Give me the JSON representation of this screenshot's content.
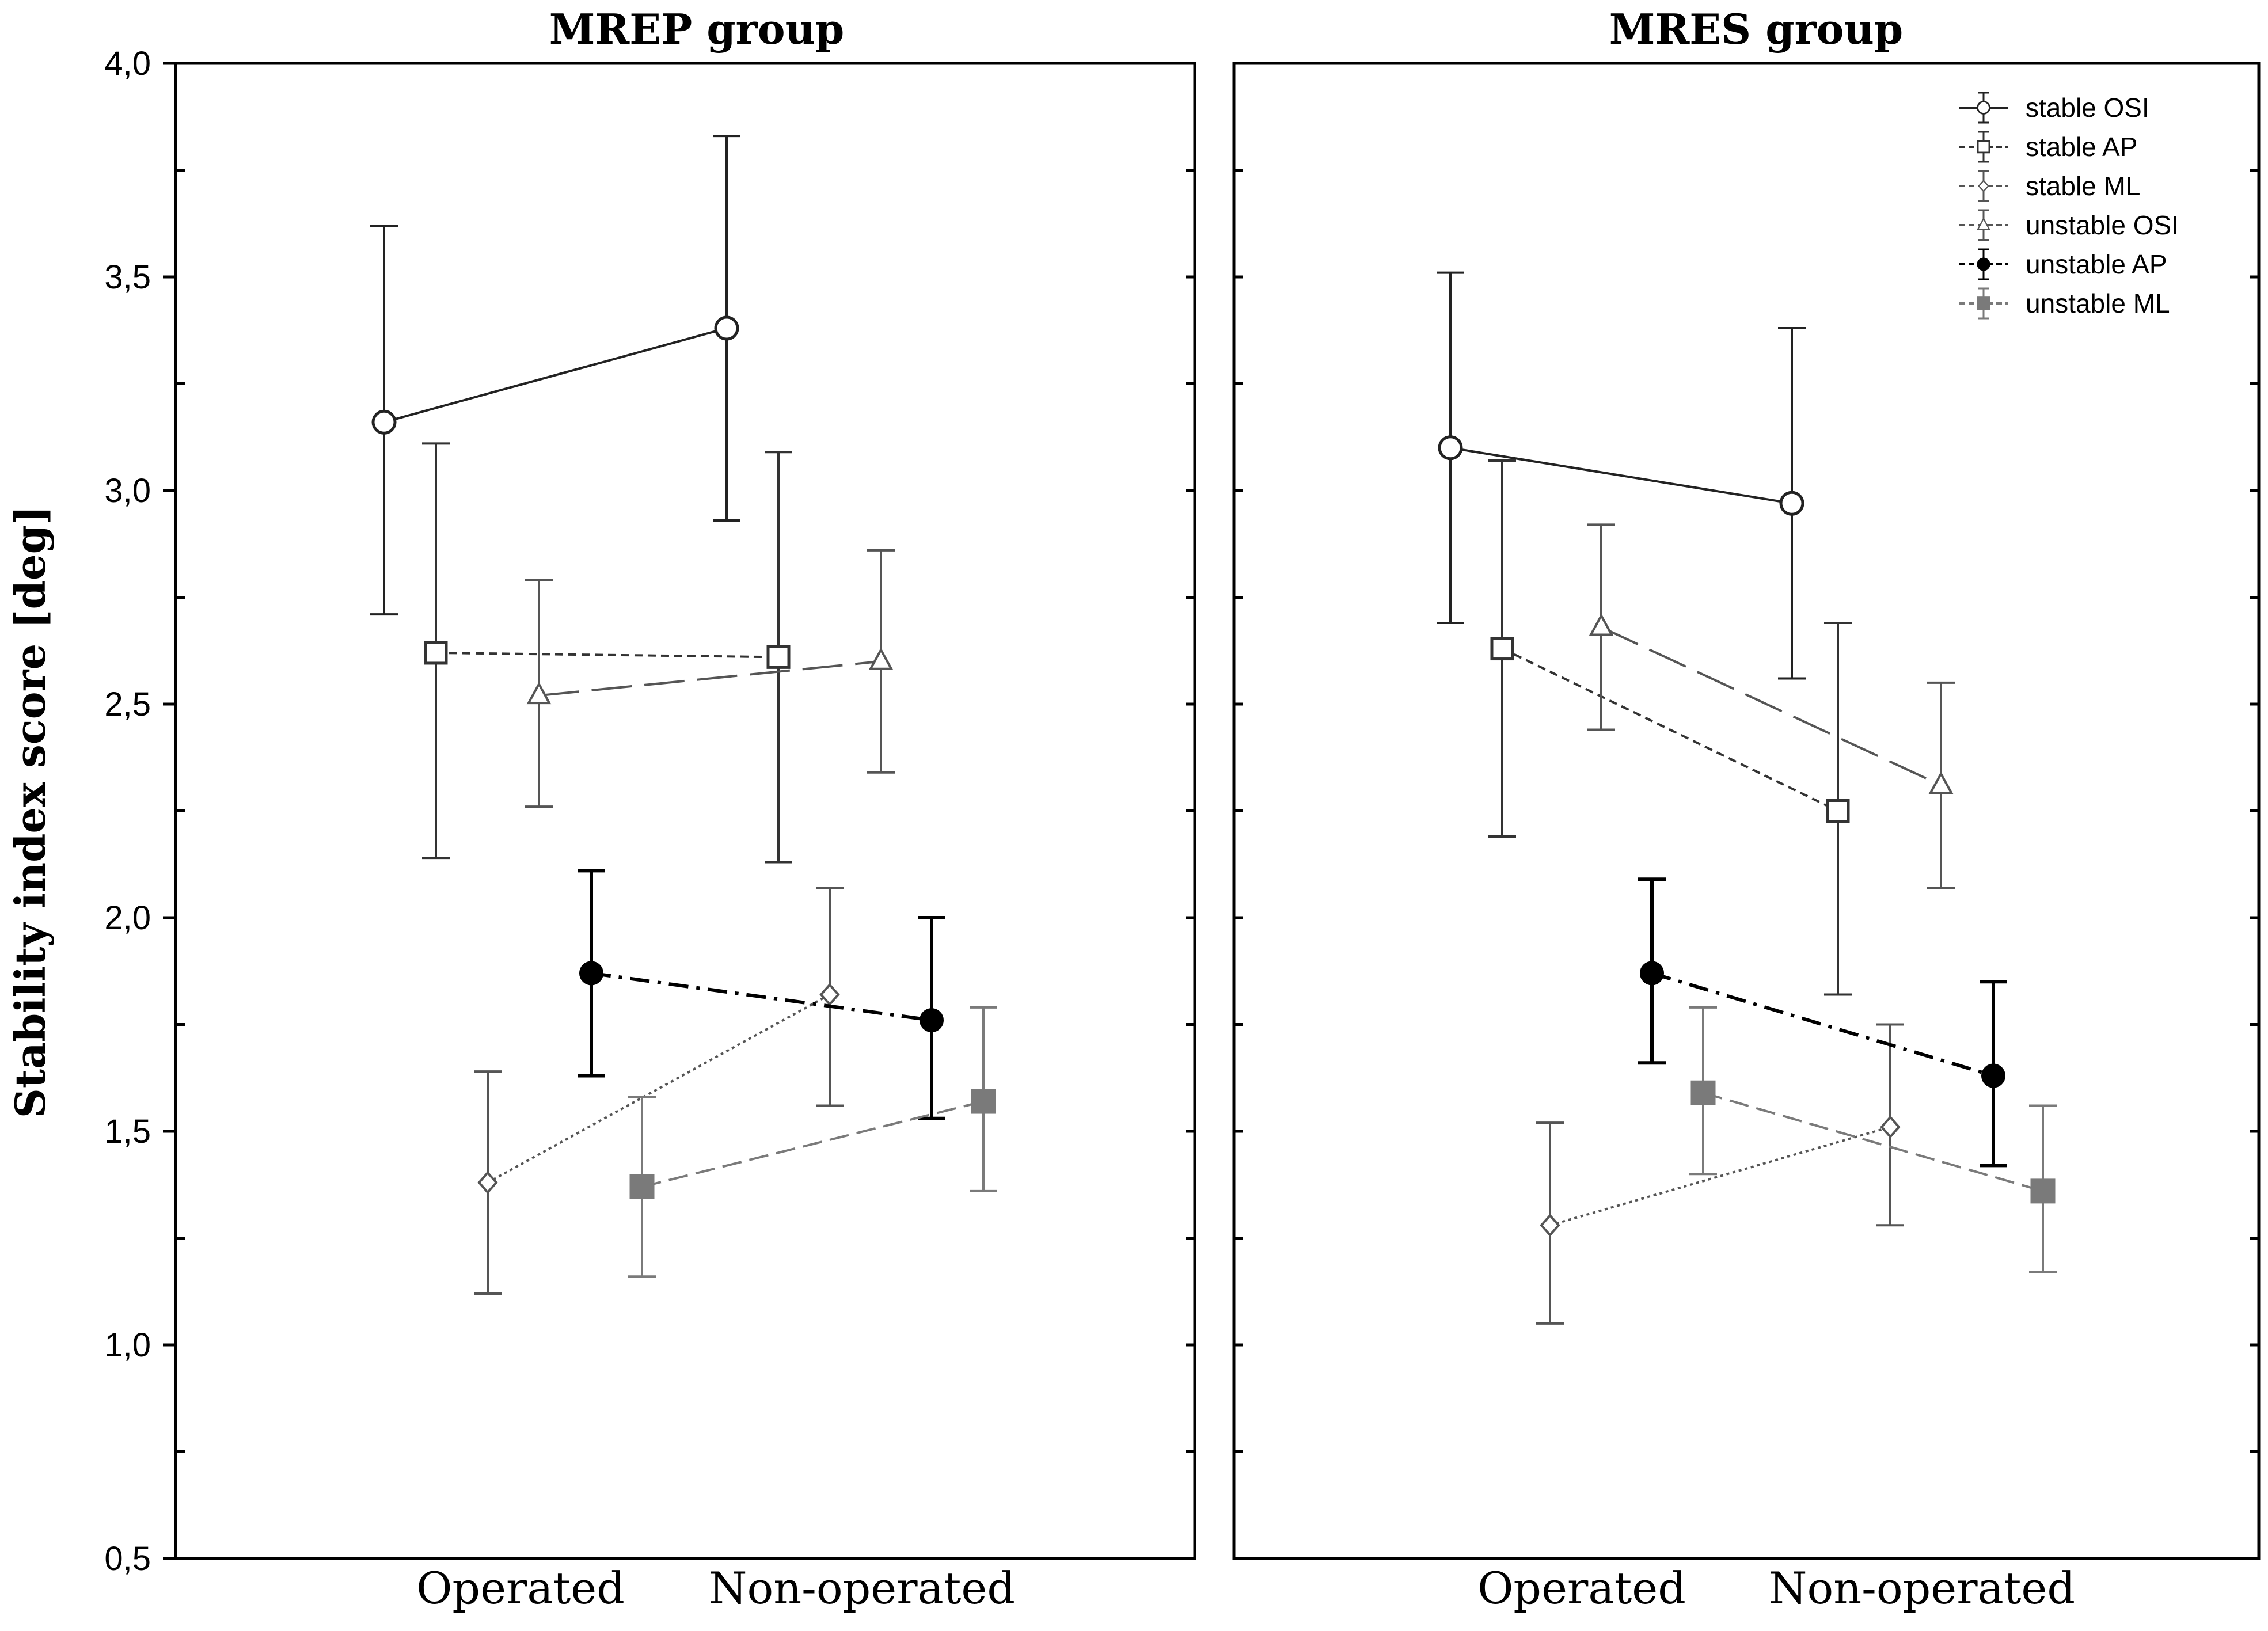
{
  "chart_data": {
    "type": "line",
    "ylabel": "Stability index score [deg]",
    "ylim": [
      0.5,
      4.0
    ],
    "yticks": [
      "0,5",
      "1,0",
      "1,5",
      "2,0",
      "2,5",
      "3,0",
      "3,5",
      "4,0"
    ],
    "categories": [
      "Operated",
      "Non-operated"
    ],
    "series_styles": [
      {
        "name": "stable OSI",
        "color": "#222222",
        "marker": "circle-open",
        "dash": "solid"
      },
      {
        "name": "stable AP",
        "color": "#333333",
        "marker": "square-open",
        "dash": "dotted"
      },
      {
        "name": "stable ML",
        "color": "#555555",
        "marker": "diamond-open",
        "dash": "fine-dotted"
      },
      {
        "name": "unstable OSI",
        "color": "#555555",
        "marker": "triangle-open",
        "dash": "long-dash"
      },
      {
        "name": "unstable AP",
        "color": "#000000",
        "marker": "circle-filled",
        "dash": "dash-dot"
      },
      {
        "name": "unstable ML",
        "color": "#7a7a7a",
        "marker": "square-filled",
        "dash": "dashed"
      }
    ],
    "panels": [
      {
        "title": "MREP group",
        "series": [
          {
            "name": "stable OSI",
            "values": [
              3.16,
              3.38
            ],
            "err_low": [
              2.71,
              2.93
            ],
            "err_high": [
              3.62,
              3.83
            ]
          },
          {
            "name": "stable AP",
            "values": [
              2.62,
              2.61
            ],
            "err_low": [
              2.14,
              2.13
            ],
            "err_high": [
              3.11,
              3.09
            ]
          },
          {
            "name": "stable ML",
            "values": [
              1.38,
              1.82
            ],
            "err_low": [
              1.12,
              1.56
            ],
            "err_high": [
              1.64,
              2.07
            ]
          },
          {
            "name": "unstable OSI",
            "values": [
              2.52,
              2.6
            ],
            "err_low": [
              2.26,
              2.34
            ],
            "err_high": [
              2.79,
              2.86
            ]
          },
          {
            "name": "unstable AP",
            "values": [
              1.87,
              1.76
            ],
            "err_low": [
              1.63,
              1.53
            ],
            "err_high": [
              2.11,
              2.0
            ]
          },
          {
            "name": "unstable ML",
            "values": [
              1.37,
              1.57
            ],
            "err_low": [
              1.16,
              1.36
            ],
            "err_high": [
              1.58,
              1.79
            ]
          }
        ]
      },
      {
        "title": "MRES group",
        "series": [
          {
            "name": "stable OSI",
            "values": [
              3.1,
              2.97
            ],
            "err_low": [
              2.69,
              2.56
            ],
            "err_high": [
              3.51,
              3.38
            ]
          },
          {
            "name": "stable AP",
            "values": [
              2.63,
              2.25
            ],
            "err_low": [
              2.19,
              1.82
            ],
            "err_high": [
              3.07,
              2.69
            ]
          },
          {
            "name": "stable ML",
            "values": [
              1.28,
              1.51
            ],
            "err_low": [
              1.05,
              1.28
            ],
            "err_high": [
              1.52,
              1.75
            ]
          },
          {
            "name": "unstable OSI",
            "values": [
              2.68,
              2.31
            ],
            "err_low": [
              2.44,
              2.07
            ],
            "err_high": [
              2.92,
              2.55
            ]
          },
          {
            "name": "unstable AP",
            "values": [
              1.87,
              1.63
            ],
            "err_low": [
              1.66,
              1.42
            ],
            "err_high": [
              2.09,
              1.85
            ]
          },
          {
            "name": "unstable ML",
            "values": [
              1.59,
              1.36
            ],
            "err_low": [
              1.4,
              1.17
            ],
            "err_high": [
              1.79,
              1.56
            ]
          }
        ]
      }
    ]
  }
}
